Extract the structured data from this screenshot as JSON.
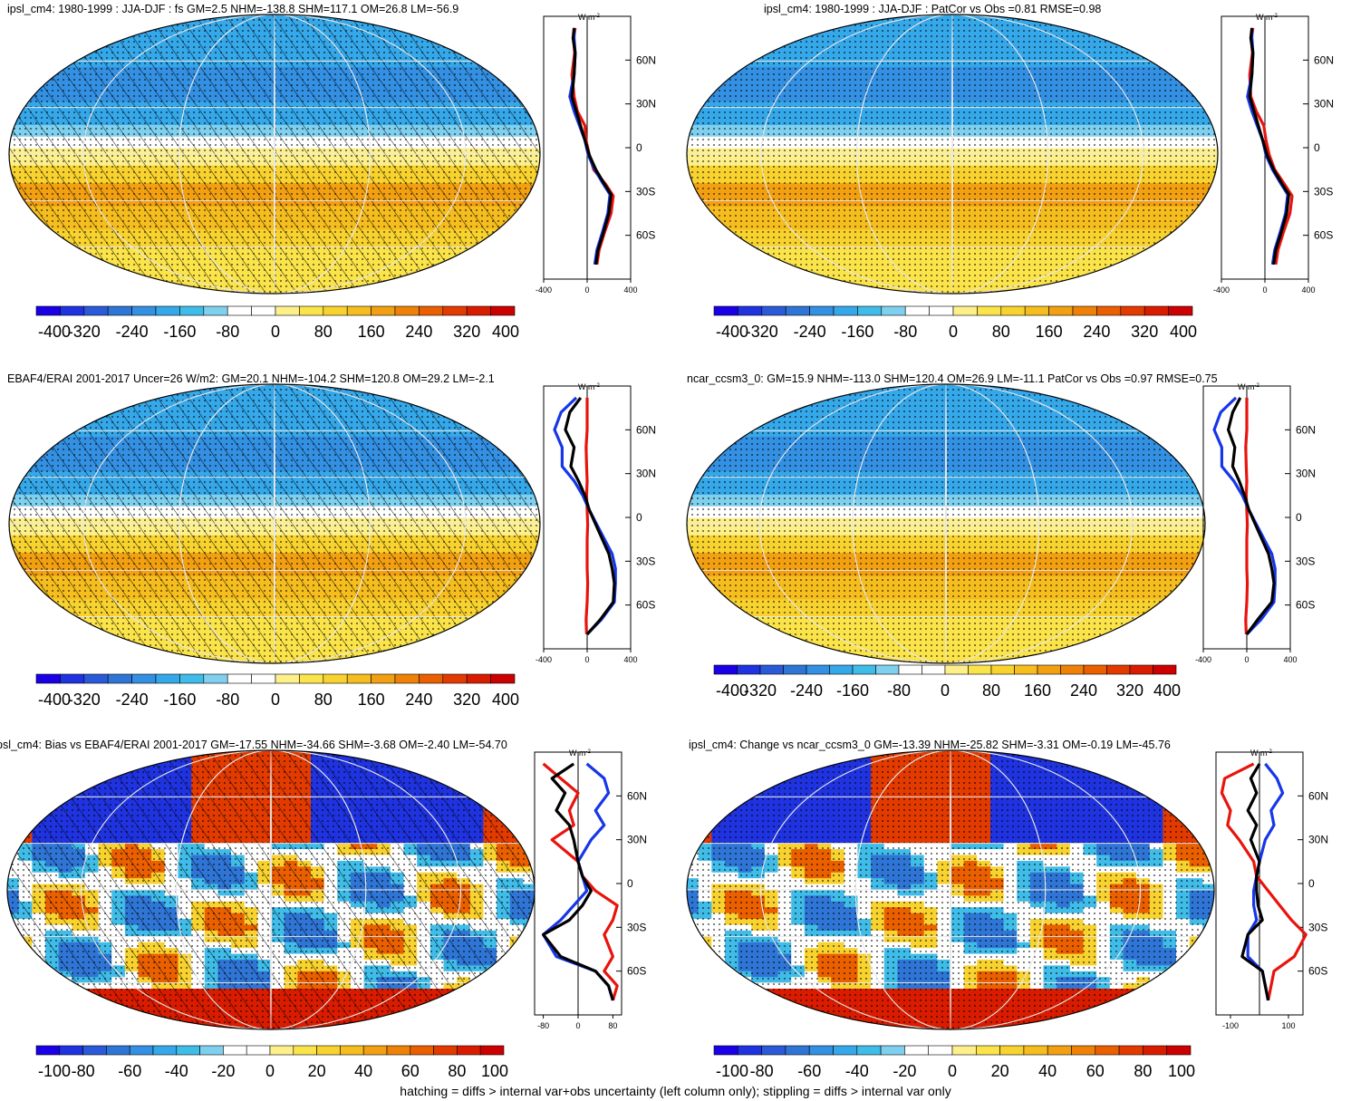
{
  "footer": "hatching = diffs > internal var+obs uncertainty (left column only); stippling = diffs > internal var only",
  "colors": {
    "full": [
      "#1a00e6",
      "#1f33e0",
      "#2a5ad8",
      "#2f75d6",
      "#3390e2",
      "#35a8ea",
      "#3fbce8",
      "#7fd0ee",
      "#ffffff",
      "#ffffff",
      "#fdf08a",
      "#fbe34a",
      "#f8d22e",
      "#f5bd1e",
      "#f2a012",
      "#ef8206",
      "#ea5f00",
      "#e33a00",
      "#d91c00",
      "#cc0000"
    ],
    "line_black": "#000000",
    "line_red": "#e8140c",
    "line_blue": "#1636e8"
  },
  "units": "W m",
  "units_exp": "-2",
  "panels": [
    {
      "id": "ipsl-djf",
      "title": "ipsl_cm4: 1980-1999 : JJA-DJF : fs GM=2.5 NHM=-138.8 SHM=117.1 OM=26.8 LM=-56.9",
      "hatch": true,
      "stipple": true,
      "kind": "full",
      "chart_data": {
        "type": "line",
        "title": "ipsl_cm4: 1980-1999 : JJA-DJF : fs GM=2.5 NHM=-138.8 SHM=117.1 OM=26.8 LM=-56.9",
        "ylabel": "",
        "xlabel": "W m-2",
        "xlim": [
          -400,
          400
        ],
        "ylim": [
          -90,
          90
        ],
        "xticks": [
          "-400",
          "0",
          "400"
        ],
        "yticks": [
          "60N",
          "30N",
          "0",
          "30S",
          "60S"
        ],
        "series": [
          {
            "color": "black",
            "x": [
              -120,
              -130,
              -110,
              -120,
              -140,
              -100,
              -60,
              -20,
              20,
              80,
              160,
              220,
              200,
              150,
              100,
              80
            ],
            "y": [
              82,
              75,
              65,
              50,
              35,
              25,
              15,
              5,
              -5,
              -15,
              -25,
              -32,
              -45,
              -58,
              -70,
              -80
            ]
          },
          {
            "color": "red",
            "x": [
              -110,
              -125,
              -115,
              -140,
              -120,
              -90,
              -20,
              -10,
              20,
              60,
              170,
              240,
              220,
              160,
              110,
              90
            ],
            "y": [
              82,
              75,
              65,
              50,
              35,
              25,
              15,
              5,
              -5,
              -15,
              -25,
              -33,
              -45,
              -58,
              -70,
              -80
            ]
          },
          {
            "color": "blue",
            "x": [
              -120,
              -120,
              -110,
              -120,
              -160,
              -120,
              -70,
              -20,
              10,
              70,
              150,
              210,
              190,
              140,
              90,
              70
            ],
            "y": [
              82,
              75,
              65,
              50,
              35,
              25,
              15,
              5,
              -5,
              -15,
              -25,
              -32,
              -45,
              -58,
              -70,
              -80
            ]
          }
        ],
        "colorbar": [
          "-400",
          "-320",
          "-240",
          "-160",
          "-80",
          "0",
          "80",
          "160",
          "240",
          "320",
          "400"
        ]
      }
    },
    {
      "id": "ipsl-patcor",
      "title": "ipsl_cm4: 1980-1999 : JJA-DJF : PatCor vs Obs =0.81 RMSE=0.98",
      "hatch": false,
      "stipple": true,
      "kind": "full",
      "chart_data": {
        "type": "line",
        "title": "ipsl_cm4: 1980-1999 : JJA-DJF : PatCor vs Obs =0.81 RMSE=0.98",
        "xlim": [
          -400,
          400
        ],
        "ylim": [
          -90,
          90
        ],
        "xticks": [
          "-400",
          "0",
          "400"
        ],
        "yticks": [
          "60N",
          "30N",
          "0",
          "30S",
          "60S"
        ],
        "series": [
          {
            "color": "black",
            "x": [
              -120,
              -130,
              -110,
              -120,
              -140,
              -100,
              -60,
              -20,
              20,
              80,
              160,
              220,
              200,
              150,
              100,
              80
            ],
            "y": [
              82,
              75,
              65,
              50,
              35,
              25,
              15,
              5,
              -5,
              -15,
              -25,
              -32,
              -45,
              -58,
              -70,
              -80
            ]
          },
          {
            "color": "red",
            "x": [
              -110,
              -125,
              -115,
              -140,
              -130,
              -80,
              -10,
              10,
              40,
              90,
              180,
              250,
              230,
              170,
              120,
              100
            ],
            "y": [
              82,
              75,
              65,
              50,
              35,
              25,
              15,
              5,
              -5,
              -15,
              -25,
              -33,
              -45,
              -58,
              -70,
              -80
            ]
          },
          {
            "color": "blue",
            "x": [
              -120,
              -120,
              -110,
              -120,
              -160,
              -120,
              -70,
              -20,
              10,
              70,
              150,
              210,
              190,
              140,
              90,
              70
            ],
            "y": [
              82,
              75,
              65,
              50,
              35,
              25,
              15,
              5,
              -5,
              -15,
              -25,
              -32,
              -45,
              -58,
              -70,
              -80
            ]
          }
        ],
        "colorbar": [
          "-400",
          "-320",
          "-240",
          "-160",
          "-80",
          "0",
          "80",
          "160",
          "240",
          "320",
          "400"
        ]
      }
    },
    {
      "id": "ebaf",
      "title": "EBAF4/ERAI 2001-2017 Uncer=26 W/m2: GM=20.1 NHM=-104.2 SHM=120.8 OM=29.2 LM=-2.1",
      "hatch": true,
      "stipple": true,
      "kind": "full",
      "chart_data": {
        "type": "line",
        "title": "EBAF4/ERAI 2001-2017 Uncer=26 W/m2: GM=20.1 NHM=-104.2 SHM=120.8 OM=29.2 LM=-2.1",
        "xlim": [
          -400,
          400
        ],
        "ylim": [
          -90,
          90
        ],
        "xticks": [
          "-400",
          "0",
          "400"
        ],
        "yticks": [
          "60N",
          "30N",
          "0",
          "30S",
          "60S"
        ],
        "series": [
          {
            "color": "black",
            "x": [
              -60,
              -160,
              -200,
              -120,
              -150,
              -80,
              -20,
              20,
              80,
              140,
              200,
              230,
              250,
              240,
              120,
              0
            ],
            "y": [
              82,
              72,
              60,
              48,
              35,
              25,
              15,
              5,
              -5,
              -15,
              -25,
              -35,
              -45,
              -58,
              -70,
              -80
            ]
          },
          {
            "color": "red",
            "x": [
              0,
              0,
              0,
              -10,
              -5,
              0,
              -5,
              0,
              5,
              0,
              0,
              0,
              5,
              0,
              -10,
              -5
            ],
            "y": [
              82,
              72,
              60,
              48,
              35,
              25,
              15,
              5,
              -5,
              -15,
              -25,
              -35,
              -45,
              -58,
              -70,
              -80
            ]
          },
          {
            "color": "blue",
            "x": [
              -100,
              -240,
              -300,
              -230,
              -230,
              -120,
              -40,
              20,
              90,
              160,
              230,
              260,
              260,
              250,
              130,
              0
            ],
            "y": [
              82,
              72,
              60,
              48,
              35,
              25,
              15,
              5,
              -5,
              -15,
              -25,
              -35,
              -45,
              -58,
              -70,
              -80
            ]
          }
        ],
        "colorbar": [
          "-400",
          "-320",
          "-240",
          "-160",
          "-80",
          "0",
          "80",
          "160",
          "240",
          "320",
          "400"
        ]
      }
    },
    {
      "id": "ncar",
      "title": "ncar_ccsm3_0: GM=15.9 NHM=-113.0 SHM=120.4 OM=26.9 LM=-11.1 PatCor vs Obs =0.97 RMSE=0.75",
      "hatch": false,
      "stipple": true,
      "kind": "full",
      "chart_data": {
        "type": "line",
        "title": "ncar_ccsm3_0: GM=15.9 NHM=-113.0 SHM=120.4 OM=26.9 LM=-11.1 PatCor vs Obs =0.97 RMSE=0.75",
        "xlim": [
          -400,
          400
        ],
        "ylim": [
          -90,
          90
        ],
        "xticks": [
          "-400",
          "0",
          "400"
        ],
        "yticks": [
          "60N",
          "30N",
          "0",
          "30S",
          "60S"
        ],
        "series": [
          {
            "color": "black",
            "x": [
              -60,
              -130,
              -170,
              -110,
              -130,
              -70,
              -20,
              20,
              80,
              140,
              200,
              230,
              250,
              230,
              100,
              0
            ],
            "y": [
              82,
              72,
              60,
              48,
              35,
              25,
              15,
              5,
              -5,
              -15,
              -25,
              -35,
              -45,
              -58,
              -70,
              -80
            ]
          },
          {
            "color": "red",
            "x": [
              0,
              0,
              0,
              -10,
              -5,
              0,
              -5,
              0,
              5,
              0,
              0,
              0,
              5,
              0,
              -10,
              -5
            ],
            "y": [
              82,
              72,
              60,
              48,
              35,
              25,
              15,
              5,
              -5,
              -15,
              -25,
              -35,
              -45,
              -58,
              -70,
              -80
            ]
          },
          {
            "color": "blue",
            "x": [
              -100,
              -240,
              -300,
              -230,
              -230,
              -120,
              -40,
              20,
              90,
              160,
              230,
              260,
              260,
              250,
              130,
              0
            ],
            "y": [
              82,
              72,
              60,
              48,
              35,
              25,
              15,
              5,
              -5,
              -15,
              -25,
              -35,
              -45,
              -58,
              -70,
              -80
            ]
          }
        ],
        "colorbar": [
          "-400",
          "-320",
          "-240",
          "-160",
          "-80",
          "0",
          "80",
          "160",
          "240",
          "320",
          "400"
        ]
      }
    },
    {
      "id": "bias",
      "title": "psl_cm4: Bias vs EBAF4/ERAI 2001-2017 GM=-17.55 NHM=-34.66 SHM=-3.68 OM=-2.40 LM=-54.70",
      "hatch": true,
      "stipple": true,
      "kind": "diff",
      "chart_data": {
        "type": "line",
        "title": "psl_cm4: Bias vs EBAF4/ERAI 2001-2017 GM=-17.55 NHM=-34.66 SHM=-3.68 OM=-2.40 LM=-54.70",
        "xlim": [
          -100,
          100
        ],
        "ylim": [
          -90,
          90
        ],
        "xticks": [
          "-80",
          "0",
          "80"
        ],
        "yticks": [
          "60N",
          "30N",
          "0",
          "30S",
          "60S"
        ],
        "series": [
          {
            "color": "black",
            "x": [
              -10,
              -60,
              -30,
              -50,
              -20,
              -10,
              0,
              10,
              30,
              10,
              -20,
              -80,
              -40,
              40,
              70,
              80
            ],
            "y": [
              82,
              72,
              62,
              50,
              40,
              30,
              15,
              5,
              -5,
              -15,
              -25,
              -35,
              -50,
              -60,
              -70,
              -80
            ]
          },
          {
            "color": "red",
            "x": [
              -80,
              -40,
              0,
              -20,
              -10,
              -60,
              0,
              10,
              40,
              90,
              80,
              60,
              80,
              60,
              90,
              80
            ],
            "y": [
              82,
              72,
              62,
              50,
              40,
              30,
              15,
              5,
              -5,
              -15,
              -25,
              -35,
              -50,
              -60,
              -70,
              -80
            ]
          },
          {
            "color": "blue",
            "x": [
              20,
              60,
              70,
              40,
              60,
              30,
              0,
              10,
              20,
              -10,
              -40,
              -80,
              -50,
              40,
              70,
              80
            ],
            "y": [
              82,
              72,
              62,
              50,
              40,
              30,
              15,
              5,
              -5,
              -15,
              -25,
              -35,
              -50,
              -60,
              -70,
              -80
            ]
          }
        ],
        "colorbar": [
          "-100",
          "-80",
          "-60",
          "-40",
          "-20",
          "0",
          "20",
          "40",
          "60",
          "80",
          "100"
        ]
      }
    },
    {
      "id": "change",
      "title": "ipsl_cm4: Change vs ncar_ccsm3_0 GM=-13.39 NHM=-25.82 SHM=-3.31 OM=-0.19 LM=-45.76",
      "hatch": false,
      "stipple": true,
      "kind": "diff",
      "chart_data": {
        "type": "line",
        "title": "ipsl_cm4: Change vs ncar_ccsm3_0 GM=-13.39 NHM=-25.82 SHM=-3.31 OM=-0.19 LM=-45.76",
        "xlim": [
          -150,
          150
        ],
        "ylim": [
          -90,
          90
        ],
        "xticks": [
          "-100",
          "100"
        ],
        "yticks": [
          "60N",
          "30N",
          "0",
          "30S",
          "60S"
        ],
        "series": [
          {
            "color": "black",
            "x": [
              0,
              -30,
              -10,
              -40,
              -10,
              -30,
              0,
              -10,
              -10,
              -5,
              10,
              -40,
              -60,
              10,
              20,
              30
            ],
            "y": [
              82,
              72,
              62,
              50,
              40,
              30,
              15,
              5,
              -5,
              -15,
              -25,
              -35,
              -50,
              -60,
              -70,
              -80
            ]
          },
          {
            "color": "red",
            "x": [
              -20,
              -120,
              -130,
              -100,
              -110,
              -70,
              -20,
              -10,
              30,
              70,
              110,
              160,
              120,
              50,
              40,
              30
            ],
            "y": [
              82,
              72,
              62,
              50,
              40,
              30,
              15,
              5,
              -5,
              -15,
              -25,
              -35,
              -50,
              -60,
              -70,
              -80
            ]
          },
          {
            "color": "blue",
            "x": [
              20,
              60,
              80,
              40,
              50,
              20,
              0,
              -10,
              -20,
              -20,
              -10,
              -40,
              -40,
              10,
              20,
              30
            ],
            "y": [
              82,
              72,
              62,
              50,
              40,
              30,
              15,
              5,
              -5,
              -15,
              -25,
              -35,
              -50,
              -60,
              -70,
              -80
            ]
          }
        ],
        "colorbar": [
          "-100",
          "-80",
          "-60",
          "-40",
          "-20",
          "0",
          "20",
          "40",
          "60",
          "80",
          "100"
        ]
      }
    }
  ]
}
